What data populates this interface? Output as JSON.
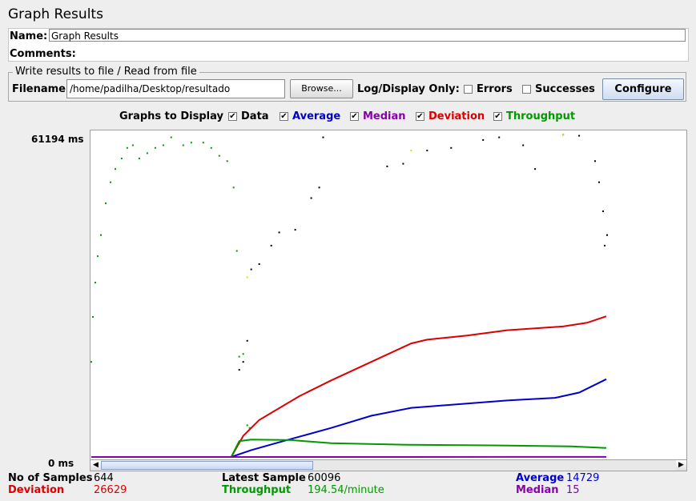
{
  "header": {
    "title": "Graph Results"
  },
  "name_field": {
    "label": "Name:",
    "value": "Graph Results"
  },
  "comments": {
    "label": "Comments:"
  },
  "file_section": {
    "legend": "Write results to file / Read from file",
    "filename_label": "Filename",
    "filename_value": "/home/padilha/Desktop/resultado",
    "browse_label": "Browse...",
    "log_display_label": "Log/Display Only:",
    "errors_label": "Errors",
    "successes_label": "Successes",
    "configure_label": "Configure"
  },
  "graphs_to_display": {
    "label": "Graphs to Display",
    "options": [
      {
        "label": "Data",
        "checked": true,
        "color": "#000000"
      },
      {
        "label": "Average",
        "checked": true,
        "color": "#0000cc"
      },
      {
        "label": "Median",
        "checked": true,
        "color": "#8800aa"
      },
      {
        "label": "Deviation",
        "checked": true,
        "color": "#dd0000"
      },
      {
        "label": "Throughput",
        "checked": true,
        "color": "#009900"
      }
    ]
  },
  "chart_data": {
    "type": "line",
    "ymax_label": "61194 ms",
    "ymin_label": "0 ms",
    "ylim": [
      0,
      61194
    ],
    "xlim": [
      0,
      644
    ],
    "series": [
      {
        "name": "Deviation",
        "color": "#dd0000",
        "points": [
          [
            0,
            0
          ],
          [
            175,
            0
          ],
          [
            190,
            4000
          ],
          [
            210,
            7000
          ],
          [
            260,
            11500
          ],
          [
            300,
            14500
          ],
          [
            350,
            18000
          ],
          [
            400,
            21500
          ],
          [
            420,
            22200
          ],
          [
            470,
            23000
          ],
          [
            520,
            24000
          ],
          [
            590,
            24700
          ],
          [
            620,
            25400
          ],
          [
            644,
            26629
          ]
        ]
      },
      {
        "name": "Average",
        "color": "#0000cc",
        "points": [
          [
            0,
            0
          ],
          [
            175,
            0
          ],
          [
            200,
            1300
          ],
          [
            240,
            3000
          ],
          [
            300,
            5500
          ],
          [
            350,
            7800
          ],
          [
            400,
            9300
          ],
          [
            460,
            10000
          ],
          [
            520,
            10700
          ],
          [
            580,
            11200
          ],
          [
            610,
            12200
          ],
          [
            644,
            14729
          ]
        ]
      },
      {
        "name": "Throughput",
        "color": "#009900",
        "points": [
          [
            0,
            0
          ],
          [
            175,
            0
          ],
          [
            185,
            3000
          ],
          [
            200,
            3300
          ],
          [
            250,
            3200
          ],
          [
            300,
            2600
          ],
          [
            400,
            2300
          ],
          [
            500,
            2200
          ],
          [
            600,
            2000
          ],
          [
            644,
            1700
          ]
        ]
      },
      {
        "name": "Median",
        "color": "#8800aa",
        "points": [
          [
            0,
            0
          ],
          [
            644,
            15
          ]
        ]
      }
    ],
    "scatter_series": [
      {
        "name": "Data",
        "color": "#000000",
        "points": [
          [
            185,
            16500
          ],
          [
            190,
            18000
          ],
          [
            195,
            22000
          ],
          [
            200,
            35500
          ],
          [
            210,
            36500
          ],
          [
            225,
            40000
          ],
          [
            235,
            42500
          ],
          [
            255,
            43000
          ],
          [
            275,
            49000
          ],
          [
            285,
            51000
          ],
          [
            290,
            60500
          ],
          [
            370,
            55000
          ],
          [
            390,
            55500
          ],
          [
            420,
            58000
          ],
          [
            450,
            58500
          ],
          [
            490,
            60000
          ],
          [
            510,
            60500
          ],
          [
            540,
            59000
          ],
          [
            555,
            54500
          ],
          [
            590,
            61000
          ],
          [
            610,
            60800
          ],
          [
            630,
            56000
          ],
          [
            635,
            52000
          ],
          [
            640,
            46500
          ],
          [
            642,
            40000
          ],
          [
            645,
            42000
          ]
        ]
      },
      {
        "name": "Throughput-early",
        "color": "#009900",
        "points": [
          [
            0,
            18000
          ],
          [
            2,
            26500
          ],
          [
            5,
            33000
          ],
          [
            8,
            38000
          ],
          [
            12,
            42000
          ],
          [
            18,
            48000
          ],
          [
            24,
            52000
          ],
          [
            30,
            54500
          ],
          [
            38,
            56500
          ],
          [
            45,
            58500
          ],
          [
            52,
            59000
          ],
          [
            60,
            56500
          ],
          [
            70,
            57500
          ],
          [
            80,
            58500
          ],
          [
            90,
            59000
          ],
          [
            100,
            60500
          ],
          [
            115,
            59000
          ],
          [
            125,
            59500
          ],
          [
            140,
            59500
          ],
          [
            150,
            58500
          ],
          [
            160,
            57000
          ],
          [
            170,
            56000
          ],
          [
            178,
            51000
          ],
          [
            182,
            39000
          ],
          [
            185,
            19000
          ],
          [
            190,
            19500
          ],
          [
            195,
            6000
          ],
          [
            198,
            5500
          ]
        ]
      },
      {
        "name": "Yellow",
        "color": "#e0e000",
        "points": [
          [
            195,
            34000
          ],
          [
            400,
            58000
          ],
          [
            590,
            61000
          ]
        ]
      }
    ]
  },
  "stats": {
    "samples_label": "No of Samples",
    "samples_value": "644",
    "latest_label": "Latest Sample",
    "latest_value": "60096",
    "average_label": "Average",
    "average_value": "14729",
    "deviation_label": "Deviation",
    "deviation_value": "26629",
    "throughput_label": "Throughput",
    "throughput_value": "194.54/minute",
    "median_label": "Median",
    "median_value": "15"
  }
}
